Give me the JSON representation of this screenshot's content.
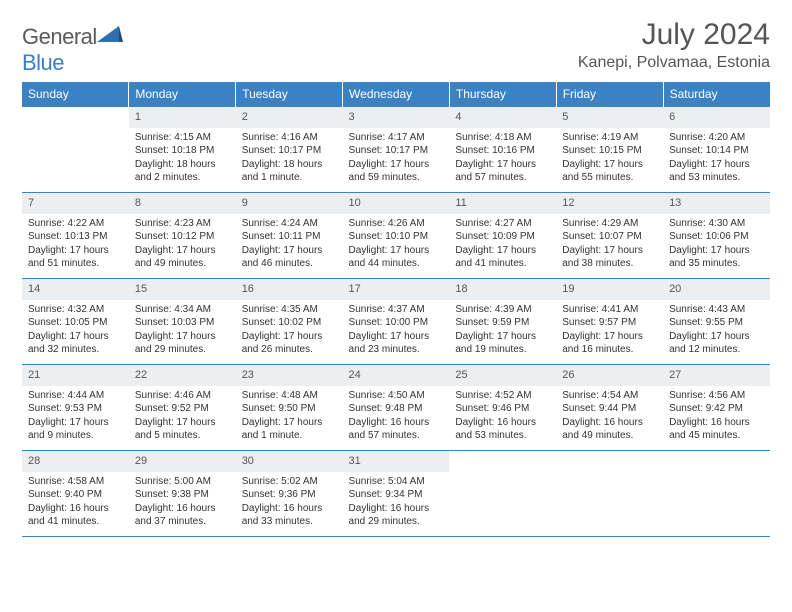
{
  "brand": {
    "part1": "General",
    "part2": "Blue"
  },
  "title": "July 2024",
  "location": "Kanepi, Polvamaa, Estonia",
  "colors": {
    "header_bg": "#3b82c4",
    "header_text": "#ffffff",
    "daynum_bg": "#eceff1",
    "border": "#3b82c4",
    "text": "#333333",
    "logo_gray": "#5a5a5a",
    "logo_blue": "#3b7ec4"
  },
  "typography": {
    "title_fontsize": 30,
    "location_fontsize": 16,
    "header_fontsize": 12,
    "cell_fontsize": 10,
    "daynum_fontsize": 11
  },
  "weekdays": [
    "Sunday",
    "Monday",
    "Tuesday",
    "Wednesday",
    "Thursday",
    "Friday",
    "Saturday"
  ],
  "weeks": [
    [
      null,
      {
        "n": "1",
        "sr": "Sunrise: 4:15 AM",
        "ss": "Sunset: 10:18 PM",
        "dl1": "Daylight: 18 hours",
        "dl2": "and 2 minutes."
      },
      {
        "n": "2",
        "sr": "Sunrise: 4:16 AM",
        "ss": "Sunset: 10:17 PM",
        "dl1": "Daylight: 18 hours",
        "dl2": "and 1 minute."
      },
      {
        "n": "3",
        "sr": "Sunrise: 4:17 AM",
        "ss": "Sunset: 10:17 PM",
        "dl1": "Daylight: 17 hours",
        "dl2": "and 59 minutes."
      },
      {
        "n": "4",
        "sr": "Sunrise: 4:18 AM",
        "ss": "Sunset: 10:16 PM",
        "dl1": "Daylight: 17 hours",
        "dl2": "and 57 minutes."
      },
      {
        "n": "5",
        "sr": "Sunrise: 4:19 AM",
        "ss": "Sunset: 10:15 PM",
        "dl1": "Daylight: 17 hours",
        "dl2": "and 55 minutes."
      },
      {
        "n": "6",
        "sr": "Sunrise: 4:20 AM",
        "ss": "Sunset: 10:14 PM",
        "dl1": "Daylight: 17 hours",
        "dl2": "and 53 minutes."
      }
    ],
    [
      {
        "n": "7",
        "sr": "Sunrise: 4:22 AM",
        "ss": "Sunset: 10:13 PM",
        "dl1": "Daylight: 17 hours",
        "dl2": "and 51 minutes."
      },
      {
        "n": "8",
        "sr": "Sunrise: 4:23 AM",
        "ss": "Sunset: 10:12 PM",
        "dl1": "Daylight: 17 hours",
        "dl2": "and 49 minutes."
      },
      {
        "n": "9",
        "sr": "Sunrise: 4:24 AM",
        "ss": "Sunset: 10:11 PM",
        "dl1": "Daylight: 17 hours",
        "dl2": "and 46 minutes."
      },
      {
        "n": "10",
        "sr": "Sunrise: 4:26 AM",
        "ss": "Sunset: 10:10 PM",
        "dl1": "Daylight: 17 hours",
        "dl2": "and 44 minutes."
      },
      {
        "n": "11",
        "sr": "Sunrise: 4:27 AM",
        "ss": "Sunset: 10:09 PM",
        "dl1": "Daylight: 17 hours",
        "dl2": "and 41 minutes."
      },
      {
        "n": "12",
        "sr": "Sunrise: 4:29 AM",
        "ss": "Sunset: 10:07 PM",
        "dl1": "Daylight: 17 hours",
        "dl2": "and 38 minutes."
      },
      {
        "n": "13",
        "sr": "Sunrise: 4:30 AM",
        "ss": "Sunset: 10:06 PM",
        "dl1": "Daylight: 17 hours",
        "dl2": "and 35 minutes."
      }
    ],
    [
      {
        "n": "14",
        "sr": "Sunrise: 4:32 AM",
        "ss": "Sunset: 10:05 PM",
        "dl1": "Daylight: 17 hours",
        "dl2": "and 32 minutes."
      },
      {
        "n": "15",
        "sr": "Sunrise: 4:34 AM",
        "ss": "Sunset: 10:03 PM",
        "dl1": "Daylight: 17 hours",
        "dl2": "and 29 minutes."
      },
      {
        "n": "16",
        "sr": "Sunrise: 4:35 AM",
        "ss": "Sunset: 10:02 PM",
        "dl1": "Daylight: 17 hours",
        "dl2": "and 26 minutes."
      },
      {
        "n": "17",
        "sr": "Sunrise: 4:37 AM",
        "ss": "Sunset: 10:00 PM",
        "dl1": "Daylight: 17 hours",
        "dl2": "and 23 minutes."
      },
      {
        "n": "18",
        "sr": "Sunrise: 4:39 AM",
        "ss": "Sunset: 9:59 PM",
        "dl1": "Daylight: 17 hours",
        "dl2": "and 19 minutes."
      },
      {
        "n": "19",
        "sr": "Sunrise: 4:41 AM",
        "ss": "Sunset: 9:57 PM",
        "dl1": "Daylight: 17 hours",
        "dl2": "and 16 minutes."
      },
      {
        "n": "20",
        "sr": "Sunrise: 4:43 AM",
        "ss": "Sunset: 9:55 PM",
        "dl1": "Daylight: 17 hours",
        "dl2": "and 12 minutes."
      }
    ],
    [
      {
        "n": "21",
        "sr": "Sunrise: 4:44 AM",
        "ss": "Sunset: 9:53 PM",
        "dl1": "Daylight: 17 hours",
        "dl2": "and 9 minutes."
      },
      {
        "n": "22",
        "sr": "Sunrise: 4:46 AM",
        "ss": "Sunset: 9:52 PM",
        "dl1": "Daylight: 17 hours",
        "dl2": "and 5 minutes."
      },
      {
        "n": "23",
        "sr": "Sunrise: 4:48 AM",
        "ss": "Sunset: 9:50 PM",
        "dl1": "Daylight: 17 hours",
        "dl2": "and 1 minute."
      },
      {
        "n": "24",
        "sr": "Sunrise: 4:50 AM",
        "ss": "Sunset: 9:48 PM",
        "dl1": "Daylight: 16 hours",
        "dl2": "and 57 minutes."
      },
      {
        "n": "25",
        "sr": "Sunrise: 4:52 AM",
        "ss": "Sunset: 9:46 PM",
        "dl1": "Daylight: 16 hours",
        "dl2": "and 53 minutes."
      },
      {
        "n": "26",
        "sr": "Sunrise: 4:54 AM",
        "ss": "Sunset: 9:44 PM",
        "dl1": "Daylight: 16 hours",
        "dl2": "and 49 minutes."
      },
      {
        "n": "27",
        "sr": "Sunrise: 4:56 AM",
        "ss": "Sunset: 9:42 PM",
        "dl1": "Daylight: 16 hours",
        "dl2": "and 45 minutes."
      }
    ],
    [
      {
        "n": "28",
        "sr": "Sunrise: 4:58 AM",
        "ss": "Sunset: 9:40 PM",
        "dl1": "Daylight: 16 hours",
        "dl2": "and 41 minutes."
      },
      {
        "n": "29",
        "sr": "Sunrise: 5:00 AM",
        "ss": "Sunset: 9:38 PM",
        "dl1": "Daylight: 16 hours",
        "dl2": "and 37 minutes."
      },
      {
        "n": "30",
        "sr": "Sunrise: 5:02 AM",
        "ss": "Sunset: 9:36 PM",
        "dl1": "Daylight: 16 hours",
        "dl2": "and 33 minutes."
      },
      {
        "n": "31",
        "sr": "Sunrise: 5:04 AM",
        "ss": "Sunset: 9:34 PM",
        "dl1": "Daylight: 16 hours",
        "dl2": "and 29 minutes."
      },
      null,
      null,
      null
    ]
  ]
}
